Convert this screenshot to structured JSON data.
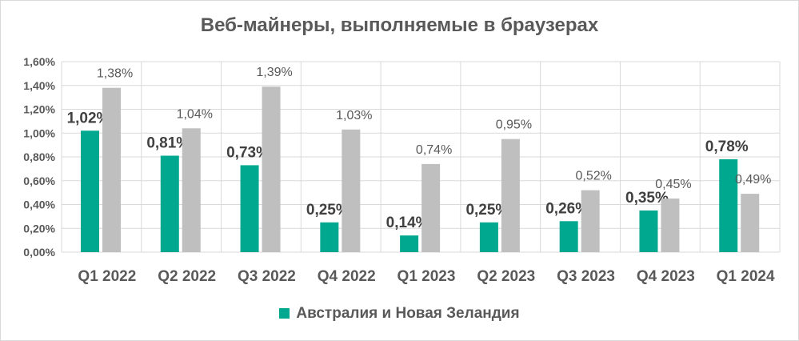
{
  "chart_data": {
    "type": "bar",
    "title": "Веб-майнеры, выполняемые в браузерах",
    "categories": [
      "Q1 2022",
      "Q2 2022",
      "Q3 2022",
      "Q4 2022",
      "Q1 2023",
      "Q2 2023",
      "Q3 2023",
      "Q4 2023",
      "Q1 2024"
    ],
    "series": [
      {
        "name": "Австралия и Новая Зеландия",
        "color": "#00a88f",
        "values": [
          1.02,
          0.81,
          0.73,
          0.25,
          0.14,
          0.25,
          0.26,
          0.35,
          0.78
        ],
        "labels": [
          "1,02%",
          "0,81%",
          "0,73%",
          "0,25%",
          "0,14%",
          "0,25%",
          "0,26%",
          "0,35%",
          "0,78%"
        ]
      },
      {
        "color": "#bfbfbf",
        "values": [
          1.38,
          1.04,
          1.39,
          1.03,
          0.74,
          0.95,
          0.52,
          0.45,
          0.49
        ],
        "labels": [
          "1,38%",
          "1,04%",
          "1,39%",
          "1,03%",
          "0,74%",
          "0,95%",
          "0,52%",
          "0,45%",
          "0,49%"
        ]
      }
    ],
    "ylim": [
      0,
      1.6
    ],
    "yticks": [
      "0,00%",
      "0,20%",
      "0,40%",
      "0,60%",
      "0,80%",
      "1,00%",
      "1,20%",
      "1,40%",
      "1,60%"
    ],
    "grid": true,
    "legend_position": "bottom"
  }
}
